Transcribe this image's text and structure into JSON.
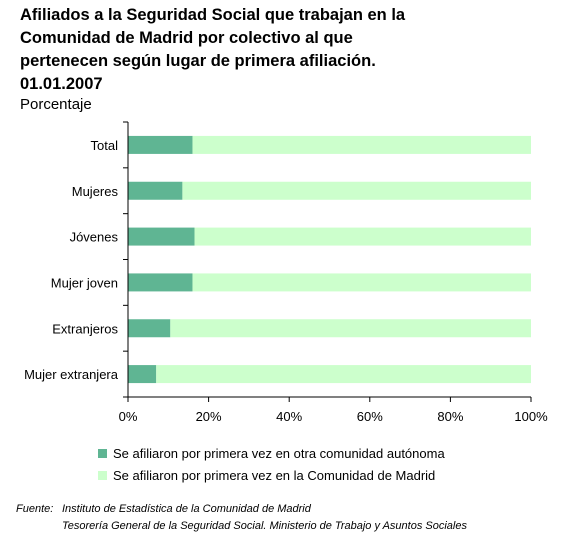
{
  "title_lines": [
    "Afiliados a la Seguridad Social que trabajan en la",
    "Comunidad de Madrid por colectivo al que",
    "pertenecen según lugar de primera afiliación.",
    "01.01.2007"
  ],
  "subtitle": "Porcentaje",
  "chart_data": {
    "type": "bar",
    "orientation": "horizontal",
    "stacked": true,
    "categories": [
      "Total",
      "Mujeres",
      "Jóvenes",
      "Mujer joven",
      "Extranjeros",
      "Mujer extranjera"
    ],
    "series": [
      {
        "name": "Se afiliaron por primera vez en otra comunidad autónoma",
        "color": "#5fb593",
        "values": [
          16,
          13.5,
          16.5,
          16,
          10.5,
          7
        ]
      },
      {
        "name": "Se afiliaron por primera vez en la Comunidad de Madrid",
        "color": "#ccffcc",
        "values": [
          84,
          86.5,
          83.5,
          84,
          89.5,
          93
        ]
      }
    ],
    "xlim": [
      0,
      100
    ],
    "xticks": [
      0,
      20,
      40,
      60,
      80,
      100
    ],
    "xtick_labels": [
      "0%",
      "20%",
      "40%",
      "60%",
      "80%",
      "100%"
    ],
    "grid": false,
    "legend_position": "bottom"
  },
  "source": {
    "label": "Fuente:",
    "lines": [
      "Instituto de Estadística de la Comunidad de Madrid",
      "Tesorería General de la Seguridad Social. Ministerio de Trabajo y Asuntos Sociales"
    ]
  }
}
